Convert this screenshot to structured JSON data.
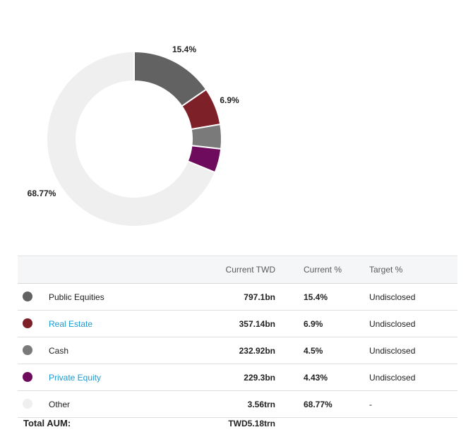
{
  "chart_data": {
    "type": "pie",
    "style": "donut",
    "slices": [
      {
        "label": "Public Equities",
        "percent": 15.4,
        "color": "#626262",
        "data_label": "15.4%"
      },
      {
        "label": "Real Estate",
        "percent": 6.9,
        "color": "#7d2027",
        "data_label": "6.9%"
      },
      {
        "label": "Cash",
        "percent": 4.5,
        "color": "#7a7a7a",
        "data_label": ""
      },
      {
        "label": "Private Equity",
        "percent": 4.43,
        "color": "#6e0b5c",
        "data_label": ""
      },
      {
        "label": "Other",
        "percent": 68.77,
        "color": "#efefef",
        "data_label": "68.77%"
      }
    ]
  },
  "table": {
    "headers": {
      "current_twd": "Current TWD",
      "current_pct": "Current %",
      "target_pct": "Target %"
    },
    "rows": [
      {
        "name": "Public Equities",
        "value": "797.1bn",
        "current_pct": "15.4%",
        "target_pct": "Undisclosed",
        "color": "#626262",
        "link": false
      },
      {
        "name": "Real Estate",
        "value": "357.14bn",
        "current_pct": "6.9%",
        "target_pct": "Undisclosed",
        "color": "#7d2027",
        "link": true
      },
      {
        "name": "Cash",
        "value": "232.92bn",
        "current_pct": "4.5%",
        "target_pct": "Undisclosed",
        "color": "#7a7a7a",
        "link": false
      },
      {
        "name": "Private Equity",
        "value": "229.3bn",
        "current_pct": "4.43%",
        "target_pct": "Undisclosed",
        "color": "#6e0b5c",
        "link": true
      },
      {
        "name": "Other",
        "value": "3.56trn",
        "current_pct": "68.77%",
        "target_pct": "-",
        "color": "#efefef",
        "link": false
      }
    ]
  },
  "total": {
    "label": "Total AUM:",
    "value": "TWD5.18trn"
  }
}
